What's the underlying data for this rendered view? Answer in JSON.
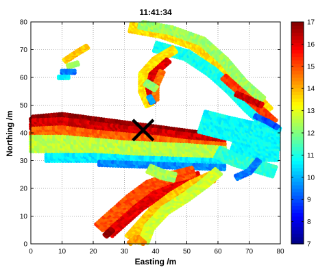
{
  "chart_data": {
    "type": "heatmap",
    "title": "11:41:34",
    "xlabel": "Easting /m",
    "ylabel": "Northing /m",
    "xlim": [
      0,
      80
    ],
    "ylim": [
      0,
      80
    ],
    "xticks": [
      0,
      10,
      20,
      30,
      40,
      50,
      60,
      70,
      80
    ],
    "yticks": [
      0,
      10,
      20,
      30,
      40,
      50,
      60,
      70,
      80
    ],
    "grid": true,
    "colorbar": {
      "min": 7,
      "max": 17,
      "ticks": [
        7,
        8,
        9,
        10,
        11,
        12,
        13,
        14,
        15,
        16,
        17
      ],
      "colormap": "jet"
    },
    "marker": {
      "symbol": "X",
      "x": 36,
      "y": 41,
      "color": "#000000"
    },
    "regions": [
      {
        "name": "west band top edge",
        "poly": [
          [
            0,
            45
          ],
          [
            10,
            46
          ],
          [
            20,
            44.5
          ],
          [
            30,
            43
          ],
          [
            40,
            41.5
          ],
          [
            50,
            40
          ],
          [
            60,
            38.5
          ],
          [
            62,
            38
          ]
        ],
        "value": 16.8,
        "width": 1.6
      },
      {
        "name": "west band dark red",
        "poly": [
          [
            0,
            43
          ],
          [
            10,
            43.5
          ],
          [
            20,
            42
          ],
          [
            30,
            40.5
          ],
          [
            40,
            39.5
          ],
          [
            50,
            38
          ],
          [
            62,
            36.5
          ]
        ],
        "value": 16.2,
        "width": 3.0
      },
      {
        "name": "west band orange",
        "poly": [
          [
            0,
            40
          ],
          [
            10,
            40.5
          ],
          [
            20,
            39
          ],
          [
            30,
            38
          ],
          [
            40,
            37
          ],
          [
            50,
            35.5
          ],
          [
            62,
            34.5
          ]
        ],
        "value": 14.8,
        "width": 3.0
      },
      {
        "name": "west band green",
        "poly": [
          [
            0,
            36
          ],
          [
            10,
            36
          ],
          [
            20,
            35
          ],
          [
            30,
            34
          ],
          [
            40,
            33.5
          ],
          [
            50,
            33
          ],
          [
            62,
            32
          ]
        ],
        "value": 12.6,
        "width": 5.2
      },
      {
        "name": "west band cyan",
        "poly": [
          [
            5,
            31
          ],
          [
            20,
            31
          ],
          [
            35,
            30
          ],
          [
            50,
            29.5
          ],
          [
            62,
            29
          ]
        ],
        "value": 10.6,
        "width": 2.2
      },
      {
        "name": "west band blue edge",
        "poly": [
          [
            22,
            29
          ],
          [
            35,
            28.5
          ],
          [
            48,
            28
          ],
          [
            62,
            27.5
          ]
        ],
        "value": 9.6,
        "width": 1.2
      },
      {
        "name": "east fan cyan",
        "poly": [
          [
            55,
            44
          ],
          [
            62,
            42
          ],
          [
            70,
            40
          ],
          [
            79,
            38
          ],
          [
            79,
            34
          ],
          [
            72,
            34
          ],
          [
            65,
            36
          ]
        ],
        "value": 10.8,
        "width": 7.5
      },
      {
        "name": "east fan teal",
        "poly": [
          [
            60,
            33
          ],
          [
            66,
            30
          ],
          [
            72,
            28
          ],
          [
            78,
            26
          ]
        ],
        "value": 11.2,
        "width": 3.5
      },
      {
        "name": "east fan blue edge",
        "poly": [
          [
            66,
            24
          ],
          [
            70,
            26
          ],
          [
            73,
            30
          ]
        ],
        "value": 9.4,
        "width": 1.2
      },
      {
        "name": "south arm red",
        "poly": [
          [
            25,
            4
          ],
          [
            30,
            9
          ],
          [
            35,
            14
          ],
          [
            42,
            19
          ],
          [
            48,
            22
          ],
          [
            54,
            24
          ]
        ],
        "value": 16.0,
        "width": 3.2
      },
      {
        "name": "south arm orange",
        "poly": [
          [
            22,
            6
          ],
          [
            27,
            11
          ],
          [
            32,
            16
          ],
          [
            38,
            21
          ],
          [
            45,
            24
          ],
          [
            52,
            26
          ]
        ],
        "value": 15.0,
        "width": 3.0
      },
      {
        "name": "south arm yellow",
        "poly": [
          [
            32,
            2
          ],
          [
            36,
            7
          ],
          [
            40,
            12
          ],
          [
            46,
            17
          ],
          [
            52,
            21
          ],
          [
            58,
            24
          ]
        ],
        "value": 13.8,
        "width": 3.2
      },
      {
        "name": "south arm green",
        "poly": [
          [
            36,
            0
          ],
          [
            38,
            6
          ],
          [
            43,
            12
          ],
          [
            50,
            17
          ],
          [
            56,
            22
          ],
          [
            60,
            26
          ]
        ],
        "value": 12.8,
        "width": 2.5
      },
      {
        "name": "south arm tail",
        "poly": [
          [
            32,
            0
          ],
          [
            34,
            2
          ],
          [
            36,
            0
          ]
        ],
        "value": 14.2,
        "width": 1.5
      },
      {
        "name": "south arm dark tip",
        "poly": [
          [
            24,
            3
          ],
          [
            26,
            5
          ]
        ],
        "value": 16.9,
        "width": 1.0
      },
      {
        "name": "centre green",
        "poly": [
          [
            38,
            27
          ],
          [
            42,
            25
          ],
          [
            46,
            24
          ]
        ],
        "value": 12.4,
        "width": 2.5
      },
      {
        "name": "north arc yellow",
        "poly": [
          [
            32,
            78
          ],
          [
            42,
            76
          ],
          [
            52,
            72
          ],
          [
            62,
            64
          ],
          [
            70,
            55
          ],
          [
            76,
            48
          ]
        ],
        "value": 13.6,
        "width": 2.8
      },
      {
        "name": "north arc green",
        "poly": [
          [
            35,
            79
          ],
          [
            45,
            77
          ],
          [
            55,
            73
          ],
          [
            62,
            66
          ],
          [
            68,
            58
          ],
          [
            74,
            52
          ]
        ],
        "value": 12.3,
        "width": 2.2
      },
      {
        "name": "north arc cyan",
        "poly": [
          [
            40,
            71
          ],
          [
            50,
            68
          ],
          [
            58,
            62
          ],
          [
            64,
            56
          ],
          [
            70,
            49
          ],
          [
            75,
            44
          ]
        ],
        "value": 10.9,
        "width": 3.0
      },
      {
        "name": "north arc orange",
        "poly": [
          [
            62,
            60
          ],
          [
            68,
            54
          ],
          [
            74,
            48
          ],
          [
            78,
            44
          ]
        ],
        "value": 15.2,
        "width": 1.6
      },
      {
        "name": "north arc red tip",
        "poly": [
          [
            66,
            54
          ],
          [
            70,
            52
          ],
          [
            74,
            50
          ]
        ],
        "value": 16.3,
        "width": 1.0
      },
      {
        "name": "north arc blue edge",
        "poly": [
          [
            72,
            46
          ],
          [
            76,
            44
          ],
          [
            79,
            42
          ]
        ],
        "value": 9.0,
        "width": 0.8
      },
      {
        "name": "hook outer yellow",
        "poly": [
          [
            46,
            70
          ],
          [
            40,
            66
          ],
          [
            36,
            61
          ],
          [
            36,
            55
          ],
          [
            38,
            50
          ]
        ],
        "value": 13.5,
        "width": 2.0
      },
      {
        "name": "hook red",
        "poly": [
          [
            44,
            66
          ],
          [
            39,
            61
          ],
          [
            38,
            56
          ],
          [
            39,
            51
          ]
        ],
        "value": 16.1,
        "width": 1.3
      },
      {
        "name": "hook orange",
        "poly": [
          [
            42,
            62
          ],
          [
            40,
            57
          ],
          [
            40,
            52
          ]
        ],
        "value": 14.7,
        "width": 1.2
      },
      {
        "name": "hook green patch",
        "poly": [
          [
            37,
            58
          ],
          [
            40,
            56
          ]
        ],
        "value": 12.2,
        "width": 1.5
      },
      {
        "name": "hook blue patch",
        "poly": [
          [
            38,
            53
          ],
          [
            39,
            51
          ]
        ],
        "value": 9.8,
        "width": 0.8
      },
      {
        "name": "islet yellow",
        "poly": [
          [
            11,
            66
          ],
          [
            15,
            69
          ],
          [
            18,
            71
          ]
        ],
        "value": 13.8,
        "width": 1.0
      },
      {
        "name": "islet green",
        "poly": [
          [
            12,
            64
          ],
          [
            15,
            65
          ]
        ],
        "value": 12.2,
        "width": 0.8
      },
      {
        "name": "islet blue",
        "poly": [
          [
            10,
            62
          ],
          [
            14,
            62
          ]
        ],
        "value": 9.4,
        "width": 0.8
      },
      {
        "name": "islet cyan",
        "poly": [
          [
            9,
            60
          ],
          [
            12,
            60
          ]
        ],
        "value": 10.7,
        "width": 0.6
      }
    ]
  }
}
